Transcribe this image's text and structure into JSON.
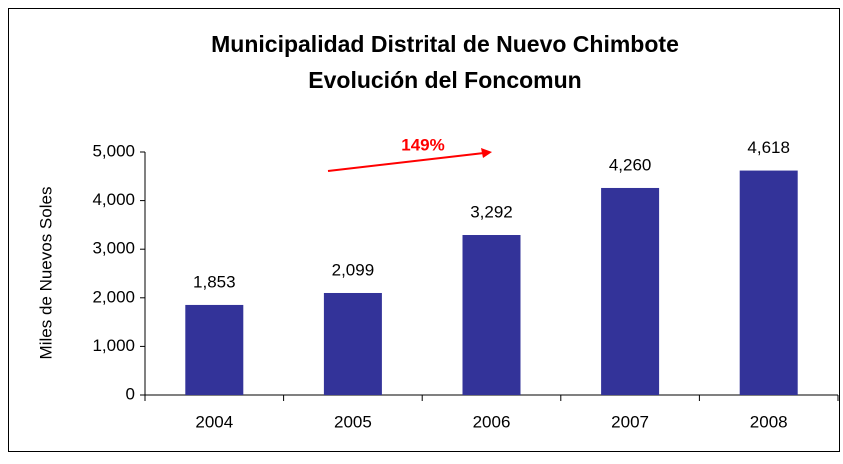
{
  "chart_data": {
    "type": "bar",
    "title": "Municipalidad Distrital de Nuevo Chimbote",
    "subtitle": "Evolución del Foncomun",
    "y_label": "Miles de Nuevos Soles",
    "annotation": "149%",
    "annotation_color": "#ff0000",
    "categories": [
      "2004",
      "2005",
      "2006",
      "2007",
      "2008"
    ],
    "values": [
      1853,
      2099,
      3292,
      4260,
      4618
    ],
    "value_labels": [
      "1,853",
      "2,099",
      "3,292",
      "4,260",
      "4,618"
    ],
    "color": "#333399",
    "ylim": [
      0,
      5000
    ],
    "yticks": [
      0,
      {
        "value": 1000,
        "label": "1,000"
      },
      {
        "value": 2000,
        "label": "2,000"
      },
      {
        "value": 3000,
        "label": "3,000"
      },
      {
        "value": 4000,
        "label": "4,000"
      },
      {
        "value": 5000,
        "label": "5,000"
      }
    ]
  }
}
